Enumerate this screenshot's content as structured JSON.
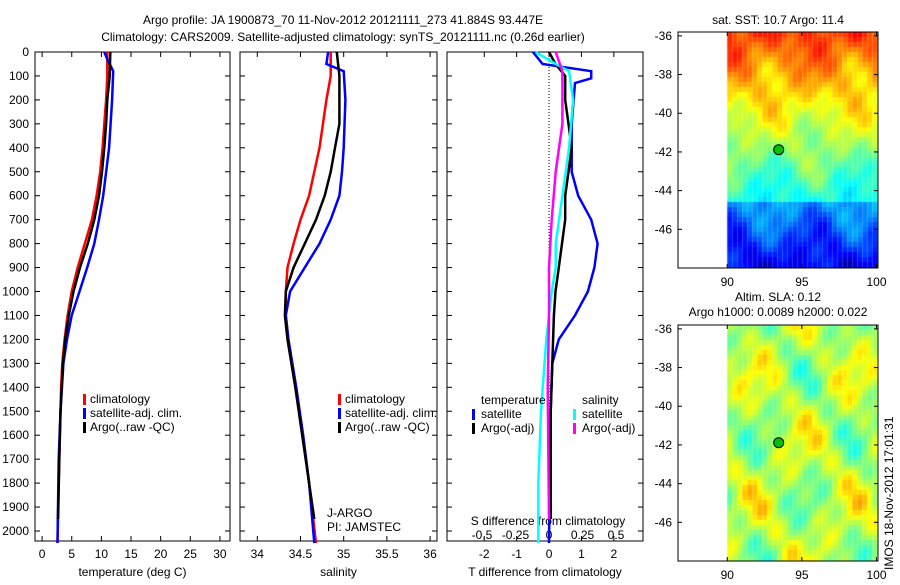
{
  "title_line1": "Argo profile: JA 1900873_70 11-Nov-2012 20121111_273 41.884S 93.447E",
  "title_line2": "Climatology: CARS2009. Satellite-adjusted climatology: synTS_20121111.nc (0.26d earlier)",
  "colors": {
    "climatology": "#ff0000",
    "satellite": "#0000ff",
    "argo": "#000000",
    "s_satellite": "#00ffff",
    "s_argo": "#ff00ff"
  },
  "chart_data": [
    {
      "type": "line",
      "name": "temperature",
      "xlabel": "temperature (deg C)",
      "ylabel": "",
      "xlim": [
        -1.2,
        31.7
      ],
      "ylim": [
        2050,
        0
      ],
      "xticks": [
        0,
        5,
        10,
        15,
        20,
        25,
        30
      ],
      "yticks": [
        0,
        100,
        200,
        300,
        400,
        500,
        600,
        700,
        800,
        900,
        1000,
        1100,
        1200,
        1300,
        1400,
        1500,
        1600,
        1700,
        1800,
        1900,
        2000
      ],
      "legend": [
        "climatology",
        "satellite-adj. clim.",
        "Argo(..raw -QC)"
      ],
      "series": [
        {
          "name": "climatology",
          "color": "climatology",
          "depth": [
            0,
            100,
            200,
            300,
            400,
            500,
            600,
            700,
            800,
            900,
            1000,
            1100,
            1200,
            1300,
            1400,
            1600,
            1800,
            2050
          ],
          "values": [
            11,
            11,
            10.8,
            10.5,
            10.2,
            9.8,
            9.2,
            8.4,
            7.2,
            6.0,
            5.0,
            4.3,
            3.8,
            3.4,
            3.2,
            3.0,
            2.8,
            2.6
          ]
        },
        {
          "name": "satellite-adj. clim.",
          "color": "satellite",
          "depth": [
            0,
            30,
            80,
            200,
            400,
            600,
            700,
            800,
            900,
            1000,
            1100,
            1200,
            1300,
            1500,
            1700,
            2050
          ],
          "values": [
            10.5,
            11,
            12,
            11.8,
            11.3,
            10.3,
            9.6,
            8.8,
            7.6,
            6.3,
            5.0,
            4.2,
            3.6,
            3.1,
            2.8,
            2.6
          ]
        },
        {
          "name": "Argo(..raw -QC)",
          "color": "argo",
          "depth": [
            0,
            100,
            200,
            300,
            400,
            500,
            600,
            700,
            800,
            900,
            1000,
            1100,
            1200,
            1300,
            1500,
            1700,
            1950
          ],
          "values": [
            11.5,
            11.4,
            11,
            10.8,
            10.5,
            10.1,
            9.6,
            8.8,
            7.7,
            6.4,
            5.3,
            4.5,
            3.9,
            3.5,
            3.1,
            2.9,
            2.7
          ]
        }
      ]
    },
    {
      "type": "line",
      "name": "salinity",
      "xlabel": "salinity",
      "xlim": [
        33.8,
        36.08
      ],
      "ylim": [
        2050,
        0
      ],
      "xticks": [
        34,
        34.5,
        35,
        35.5,
        36
      ],
      "legend": [
        "climatology",
        "satellite-adj. clim.",
        "Argo(..raw -QC)"
      ],
      "annotation": [
        "J-ARGO",
        "PI: JAMSTEC"
      ],
      "series": [
        {
          "name": "climatology",
          "color": "climatology",
          "depth": [
            0,
            100,
            200,
            400,
            600,
            700,
            800,
            900,
            1000,
            1100,
            1200,
            1400,
            1600,
            1800,
            2050
          ],
          "values": [
            34.85,
            34.85,
            34.8,
            34.72,
            34.6,
            34.5,
            34.42,
            34.35,
            34.33,
            34.33,
            34.36,
            34.45,
            34.53,
            34.6,
            34.68
          ]
        },
        {
          "name": "satellite-adj. clim.",
          "color": "satellite",
          "depth": [
            0,
            50,
            80,
            200,
            400,
            500,
            600,
            700,
            800,
            900,
            1000,
            1100,
            1200,
            1400,
            1600,
            1800,
            2050
          ],
          "values": [
            34.82,
            34.8,
            35.0,
            35.02,
            35.0,
            34.98,
            34.95,
            34.85,
            34.72,
            34.55,
            34.38,
            34.33,
            34.36,
            34.45,
            34.53,
            34.6,
            34.66
          ]
        },
        {
          "name": "Argo(..raw -QC)",
          "color": "argo",
          "depth": [
            0,
            100,
            300,
            400,
            500,
            600,
            700,
            800,
            900,
            1000,
            1100,
            1200,
            1400,
            1600,
            1800,
            1950
          ],
          "values": [
            34.92,
            34.95,
            34.95,
            34.9,
            34.85,
            34.78,
            34.68,
            34.55,
            34.42,
            34.33,
            34.32,
            34.35,
            34.44,
            34.52,
            34.6,
            34.66
          ]
        }
      ]
    },
    {
      "type": "line",
      "name": "difference",
      "xlabel": "T difference from climatology",
      "x2label": "S difference from climatology",
      "xlim": [
        -3.15,
        2.9
      ],
      "xticks": [
        -2,
        -1,
        0,
        1,
        2
      ],
      "x2ticks": [
        -0.5,
        -0.25,
        0,
        0.25,
        0.5
      ],
      "x2ticklabels": [
        "-0.5",
        "-0.25",
        "0",
        "0.25",
        "0.5"
      ],
      "legend_titles": [
        "temperature",
        "salinity"
      ],
      "legend": [
        "satellite",
        "Argo(-adj)",
        "satellite",
        "Argo(-adj)"
      ],
      "series": [
        {
          "name": "T satellite",
          "axis": "T",
          "color": "satellite",
          "depth": [
            0,
            50,
            80,
            110,
            130,
            300,
            500,
            600,
            700,
            800,
            900,
            1000,
            1100,
            1200,
            1300,
            1500,
            2050
          ],
          "values": [
            -0.5,
            -0.2,
            1.3,
            1.3,
            0.8,
            0.7,
            0.7,
            0.9,
            1.3,
            1.5,
            1.4,
            1.2,
            0.8,
            0.3,
            0.1,
            0.05,
            0.0
          ]
        },
        {
          "name": "T Argo(-adj)",
          "axis": "T",
          "color": "argo",
          "depth": [
            0,
            50,
            100,
            200,
            300,
            400,
            500,
            600,
            700,
            800,
            900,
            1000,
            1100,
            1300,
            1500,
            1950
          ],
          "values": [
            0,
            0.2,
            0.5,
            0.5,
            0.6,
            0.7,
            0.6,
            0.5,
            0.5,
            0.4,
            0.3,
            0.2,
            0.15,
            0.1,
            0.05,
            0.05
          ]
        },
        {
          "name": "S satellite",
          "axis": "S",
          "color": "s_satellite",
          "depth": [
            0,
            50,
            80,
            200,
            400,
            600,
            800,
            900,
            1000,
            1200,
            1500,
            1800,
            2050
          ],
          "values": [
            -0.1,
            0.05,
            0.15,
            0.18,
            0.15,
            0.1,
            0.05,
            0.05,
            0.02,
            -0.02,
            -0.06,
            -0.08,
            -0.08
          ]
        },
        {
          "name": "S Argo(-adj)",
          "axis": "S",
          "color": "s_argo",
          "depth": [
            0,
            80,
            300,
            500,
            700,
            900,
            1100,
            1400,
            1950
          ],
          "values": [
            0.05,
            0.1,
            0.1,
            0.05,
            0.02,
            0,
            0,
            -0.01,
            0
          ]
        }
      ]
    },
    {
      "type": "heatmap",
      "name": "sst-map",
      "title": "sat. SST: 10.7 Argo: 11.4",
      "xlim": [
        86.7,
        100.1
      ],
      "ylim": [
        -48,
        -35.8
      ],
      "xticks": [
        90,
        95,
        100
      ],
      "yticks": [
        -36,
        -38,
        -40,
        -42,
        -44,
        -46
      ],
      "data_lon_min": 90,
      "marker": {
        "lon": 93.447,
        "lat": -41.884
      }
    },
    {
      "type": "heatmap",
      "name": "sla-map",
      "title": [
        "Altim. SLA: 0.12",
        "Argo h1000: 0.0089 h2000: 0.022"
      ],
      "xlim": [
        86.7,
        100.1
      ],
      "ylim": [
        -48,
        -35.8
      ],
      "xticks": [
        90,
        95,
        100
      ],
      "yticks": [
        -36,
        -38,
        -40,
        -42,
        -44,
        -46
      ],
      "data_lon_min": 90,
      "marker": {
        "lon": 93.447,
        "lat": -41.884
      }
    }
  ],
  "footer_stamp": "IMOS 18-Nov-2012 17:01:31"
}
